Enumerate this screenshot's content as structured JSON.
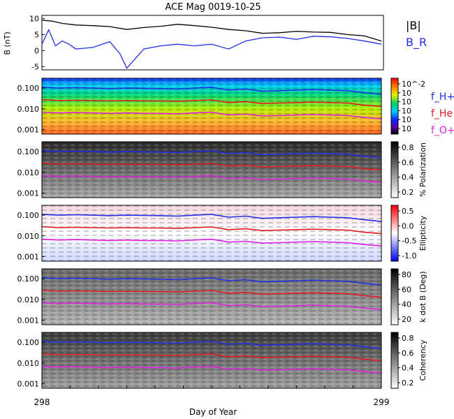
{
  "title": "ACE Mag 0019-10-25",
  "xlabel": "Day of Year",
  "x_ticks": [
    "298",
    "299"
  ],
  "top_panel": {
    "ylabel": "B (nT)",
    "yticks": [
      "10",
      "5",
      "0",
      "-5"
    ],
    "legend": [
      {
        "label": "|B|",
        "color": "#000000"
      },
      {
        "label": "B_R",
        "color": "#1f2fe8"
      }
    ]
  },
  "freq_ticks": [
    "0.100",
    "0.010",
    "0.001"
  ],
  "freq_legend": [
    {
      "label": "f_H+",
      "color": "#1f2fe8"
    },
    {
      "label": "f_He+",
      "color": "#e41a1c"
    },
    {
      "label": "f_O+",
      "color": "#e020e0"
    }
  ],
  "panels": [
    {
      "id": "power",
      "colormap": "rainbow",
      "colorbar_ticks": [
        "10^-2",
        "10",
        "10",
        "10",
        "10",
        "10"
      ]
    },
    {
      "id": "polarization",
      "colormap": "gray",
      "colorbar_label": "% Polarization",
      "colorbar_ticks": [
        "0.8",
        "0.6",
        "0.4",
        "0.2"
      ]
    },
    {
      "id": "ellipticity",
      "colormap": "bwr",
      "colorbar_label": "Ellipticity",
      "colorbar_ticks": [
        "0.5",
        "0.0",
        "-0.5",
        "-1.0"
      ]
    },
    {
      "id": "kdotb",
      "colormap": "gray",
      "colorbar_label": "k dot B (Deg)",
      "colorbar_ticks": [
        "80",
        "60",
        "40",
        "20"
      ]
    },
    {
      "id": "coherency",
      "colormap": "gray",
      "colorbar_label": "Coherency",
      "colorbar_ticks": [
        "0.8",
        "0.6",
        "0.4",
        "0.2"
      ]
    }
  ],
  "chart_data": {
    "type": "line",
    "x_range": [
      298,
      299
    ],
    "top_panel": {
      "ylim": [
        -6,
        11
      ],
      "series": [
        {
          "name": "|B|",
          "color": "#000000",
          "x": [
            298.0,
            298.03,
            298.06,
            298.1,
            298.15,
            298.2,
            298.25,
            298.3,
            298.35,
            298.4,
            298.45,
            298.5,
            298.55,
            298.6,
            298.65,
            298.7,
            298.75,
            298.8,
            298.85,
            298.9,
            298.95,
            299.0
          ],
          "y": [
            9.5,
            9.2,
            8.5,
            8.0,
            7.8,
            7.5,
            6.6,
            7.2,
            7.6,
            8.2,
            7.8,
            7.3,
            6.6,
            6.2,
            5.4,
            5.6,
            6.0,
            5.8,
            5.7,
            5.0,
            4.6,
            3.0
          ]
        },
        {
          "name": "B_R",
          "color": "#1f2fe8",
          "x": [
            298.0,
            298.02,
            298.04,
            298.06,
            298.08,
            298.1,
            298.15,
            298.2,
            298.23,
            298.25,
            298.3,
            298.35,
            298.4,
            298.45,
            298.5,
            298.55,
            298.6,
            298.65,
            298.7,
            298.75,
            298.8,
            298.85,
            298.9,
            298.95,
            299.0
          ],
          "y": [
            2.0,
            6.5,
            1.5,
            3.0,
            2.0,
            0.5,
            1.0,
            2.8,
            -1.0,
            -5.5,
            0.5,
            1.5,
            2.0,
            1.5,
            2.0,
            0.5,
            3.0,
            4.0,
            4.2,
            3.5,
            4.5,
            4.3,
            3.8,
            3.0,
            2.0
          ]
        }
      ]
    },
    "frequency_panels": {
      "yscale": "log",
      "ylim": [
        0.0006,
        0.3
      ],
      "series": [
        {
          "name": "f_H+",
          "color": "#1f2fe8",
          "x": [
            298.0,
            298.05,
            298.1,
            298.15,
            298.2,
            298.25,
            298.3,
            298.35,
            298.4,
            298.45,
            298.5,
            298.55,
            298.6,
            298.65,
            298.7,
            298.75,
            298.8,
            298.85,
            298.9,
            298.95,
            299.0
          ],
          "y": [
            0.11,
            0.1,
            0.105,
            0.1,
            0.095,
            0.1,
            0.098,
            0.095,
            0.09,
            0.1,
            0.11,
            0.08,
            0.09,
            0.07,
            0.075,
            0.08,
            0.085,
            0.08,
            0.075,
            0.06,
            0.05
          ]
        },
        {
          "name": "f_He+",
          "color": "#e41a1c",
          "x": [
            298.0,
            298.05,
            298.1,
            298.15,
            298.2,
            298.25,
            298.3,
            298.35,
            298.4,
            298.45,
            298.5,
            298.55,
            298.6,
            298.65,
            298.7,
            298.75,
            298.8,
            298.85,
            298.9,
            298.95,
            299.0
          ],
          "y": [
            0.028,
            0.025,
            0.026,
            0.025,
            0.024,
            0.025,
            0.024,
            0.024,
            0.023,
            0.025,
            0.027,
            0.02,
            0.022,
            0.018,
            0.019,
            0.02,
            0.021,
            0.02,
            0.019,
            0.015,
            0.013
          ]
        },
        {
          "name": "f_O+",
          "color": "#e020e0",
          "x": [
            298.0,
            298.05,
            298.1,
            298.15,
            298.2,
            298.25,
            298.3,
            298.35,
            298.4,
            298.45,
            298.5,
            298.55,
            298.6,
            298.65,
            298.7,
            298.75,
            298.8,
            298.85,
            298.9,
            298.95,
            299.0
          ],
          "y": [
            0.0069,
            0.0063,
            0.0066,
            0.0063,
            0.006,
            0.0063,
            0.006,
            0.006,
            0.0057,
            0.0063,
            0.0069,
            0.005,
            0.0055,
            0.0045,
            0.0047,
            0.005,
            0.0053,
            0.005,
            0.0047,
            0.0038,
            0.0033
          ]
        }
      ]
    }
  }
}
